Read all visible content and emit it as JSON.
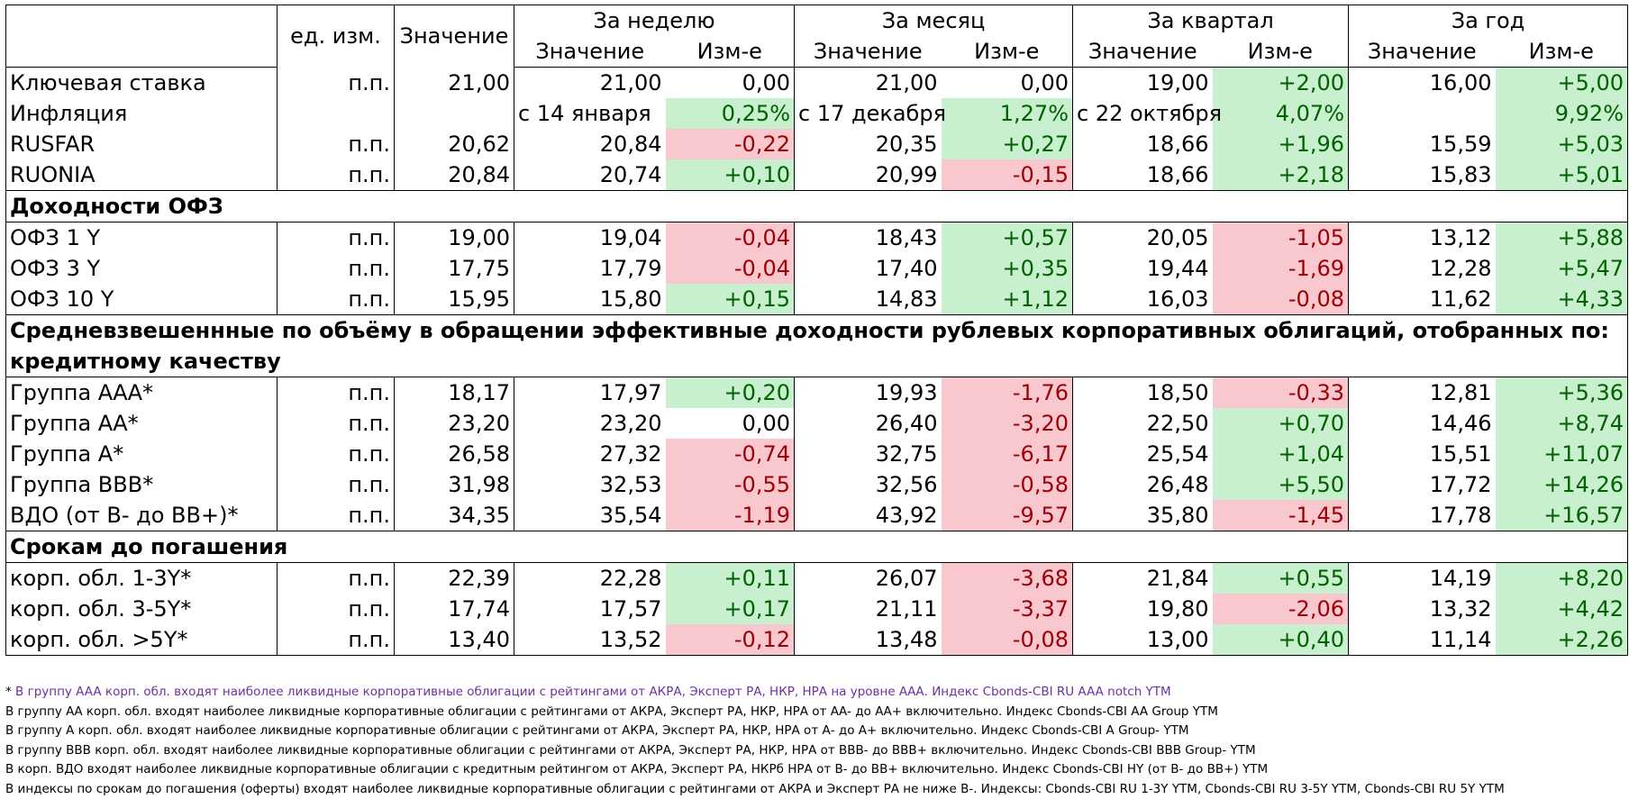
{
  "header": {
    "unit": "ед. изм.",
    "value": "Значение",
    "periods": [
      "За неделю",
      "За месяц",
      "За квартал",
      "За год"
    ],
    "sub_value": "Значение",
    "sub_change": "Изм-е"
  },
  "rows_top": [
    {
      "name": "Ключевая ставка",
      "unit": "п.п.",
      "value": "21,00",
      "cells": [
        {
          "v": "21,00",
          "c": "0,00",
          "t": ""
        },
        {
          "v": "21,00",
          "c": "0,00",
          "t": ""
        },
        {
          "v": "19,00",
          "c": "+2,00",
          "t": "pos"
        },
        {
          "v": "16,00",
          "c": "+5,00",
          "t": "pos"
        }
      ]
    },
    {
      "name": "Инфляция",
      "unit": "",
      "value": "",
      "cells": [
        {
          "v": "с 14 января",
          "c": "0,25%",
          "t": "pos"
        },
        {
          "v": "с 17 декабря",
          "c": "1,27%",
          "t": "pos"
        },
        {
          "v": "с 22 октября",
          "c": "4,07%",
          "t": "pos"
        },
        {
          "v": "",
          "c": "9,92%",
          "t": "pos"
        }
      ]
    },
    {
      "name": "RUSFAR",
      "unit": "п.п.",
      "value": "20,62",
      "cells": [
        {
          "v": "20,84",
          "c": "-0,22",
          "t": "neg"
        },
        {
          "v": "20,35",
          "c": "+0,27",
          "t": "pos"
        },
        {
          "v": "18,66",
          "c": "+1,96",
          "t": "pos"
        },
        {
          "v": "15,59",
          "c": "+5,03",
          "t": "pos"
        }
      ]
    },
    {
      "name": "RUONIA",
      "unit": "п.п.",
      "value": "20,84",
      "cells": [
        {
          "v": "20,74",
          "c": "+0,10",
          "t": "pos"
        },
        {
          "v": "20,99",
          "c": "-0,15",
          "t": "neg"
        },
        {
          "v": "18,66",
          "c": "+2,18",
          "t": "pos"
        },
        {
          "v": "15,83",
          "c": "+5,01",
          "t": "pos"
        }
      ]
    }
  ],
  "section_ofz": "Доходности ОФЗ",
  "rows_ofz": [
    {
      "name": "ОФЗ 1 Y",
      "unit": "п.п.",
      "value": "19,00",
      "cells": [
        {
          "v": "19,04",
          "c": "-0,04",
          "t": "neg"
        },
        {
          "v": "18,43",
          "c": "+0,57",
          "t": "pos"
        },
        {
          "v": "20,05",
          "c": "-1,05",
          "t": "neg"
        },
        {
          "v": "13,12",
          "c": "+5,88",
          "t": "pos"
        }
      ]
    },
    {
      "name": "ОФЗ 3 Y",
      "unit": "п.п.",
      "value": "17,75",
      "cells": [
        {
          "v": "17,79",
          "c": "-0,04",
          "t": "neg"
        },
        {
          "v": "17,40",
          "c": "+0,35",
          "t": "pos"
        },
        {
          "v": "19,44",
          "c": "-1,69",
          "t": "neg"
        },
        {
          "v": "12,28",
          "c": "+5,47",
          "t": "pos"
        }
      ]
    },
    {
      "name": "ОФЗ 10 Y",
      "unit": "п.п.",
      "value": "15,95",
      "cells": [
        {
          "v": "15,80",
          "c": "+0,15",
          "t": "pos"
        },
        {
          "v": "14,83",
          "c": "+1,12",
          "t": "pos"
        },
        {
          "v": "16,03",
          "c": "-0,08",
          "t": "neg"
        },
        {
          "v": "11,62",
          "c": "+4,33",
          "t": "pos"
        }
      ]
    }
  ],
  "section_corp_line1": "Средневзвешеннные по объёму в обращении эффективные доходности рублевых корпоративных облигаций, отобранных по:",
  "section_corp_line2": "кредитному качеству",
  "rows_credit": [
    {
      "name": "Группа ААА*",
      "unit": "п.п.",
      "value": "18,17",
      "cells": [
        {
          "v": "17,97",
          "c": "+0,20",
          "t": "pos"
        },
        {
          "v": "19,93",
          "c": "-1,76",
          "t": "neg"
        },
        {
          "v": "18,50",
          "c": "-0,33",
          "t": "neg"
        },
        {
          "v": "12,81",
          "c": "+5,36",
          "t": "pos"
        }
      ]
    },
    {
      "name": "Группа АА*",
      "unit": "п.п.",
      "value": "23,20",
      "cells": [
        {
          "v": "23,20",
          "c": "0,00",
          "t": ""
        },
        {
          "v": "26,40",
          "c": "-3,20",
          "t": "neg"
        },
        {
          "v": "22,50",
          "c": "+0,70",
          "t": "pos"
        },
        {
          "v": "14,46",
          "c": "+8,74",
          "t": "pos"
        }
      ]
    },
    {
      "name": "Группа А*",
      "unit": "п.п.",
      "value": "26,58",
      "cells": [
        {
          "v": "27,32",
          "c": "-0,74",
          "t": "neg"
        },
        {
          "v": "32,75",
          "c": "-6,17",
          "t": "neg"
        },
        {
          "v": "25,54",
          "c": "+1,04",
          "t": "pos"
        },
        {
          "v": "15,51",
          "c": "+11,07",
          "t": "pos"
        }
      ]
    },
    {
      "name": "Группа BBB*",
      "unit": "п.п.",
      "value": "31,98",
      "cells": [
        {
          "v": "32,53",
          "c": "-0,55",
          "t": "neg"
        },
        {
          "v": "32,56",
          "c": "-0,58",
          "t": "neg"
        },
        {
          "v": "26,48",
          "c": "+5,50",
          "t": "pos"
        },
        {
          "v": "17,72",
          "c": "+14,26",
          "t": "pos"
        }
      ]
    },
    {
      "name": "ВДО (от B- до BB+)*",
      "unit": "п.п.",
      "value": "34,35",
      "cells": [
        {
          "v": "35,54",
          "c": "-1,19",
          "t": "neg"
        },
        {
          "v": "43,92",
          "c": "-9,57",
          "t": "neg"
        },
        {
          "v": "35,80",
          "c": "-1,45",
          "t": "neg"
        },
        {
          "v": "17,78",
          "c": "+16,57",
          "t": "pos"
        }
      ]
    }
  ],
  "section_maturity": "Срокам до погашения",
  "rows_maturity": [
    {
      "name": "корп. обл. 1-3Y*",
      "unit": "п.п.",
      "value": "22,39",
      "cells": [
        {
          "v": "22,28",
          "c": "+0,11",
          "t": "pos"
        },
        {
          "v": "26,07",
          "c": "-3,68",
          "t": "neg"
        },
        {
          "v": "21,84",
          "c": "+0,55",
          "t": "pos"
        },
        {
          "v": "14,19",
          "c": "+8,20",
          "t": "pos"
        }
      ]
    },
    {
      "name": "корп. обл. 3-5Y*",
      "unit": "п.п.",
      "value": "17,74",
      "cells": [
        {
          "v": "17,57",
          "c": "+0,17",
          "t": "pos"
        },
        {
          "v": "21,11",
          "c": "-3,37",
          "t": "neg"
        },
        {
          "v": "19,80",
          "c": "-2,06",
          "t": "neg"
        },
        {
          "v": "13,32",
          "c": "+4,42",
          "t": "pos"
        }
      ]
    },
    {
      "name": "корп. обл. >5Y*",
      "unit": "п.п.",
      "value": "13,40",
      "cells": [
        {
          "v": "13,52",
          "c": "-0,12",
          "t": "neg"
        },
        {
          "v": "13,48",
          "c": "-0,08",
          "t": "neg"
        },
        {
          "v": "13,00",
          "c": "+0,40",
          "t": "pos"
        },
        {
          "v": "11,14",
          "c": "+2,26",
          "t": "pos"
        }
      ]
    }
  ],
  "notes": {
    "first_star": "* ",
    "first_rest": "В группу AAA корп. обл. входят наиболее ликвидные корпоративные облигации с рейтингами от АКРА, Эксперт РА, НКР, НРА на уровне ААА. Индекс Cbonds-CBI RU AAA notch YTM",
    "lines": [
      "В группу АА корп. обл. входят наиболее ликвидные корпоративные облигации с рейтингами от АКРА, Эксперт РА, НКР, НРА от АА- до АА+ включительно.  Индекс Cbonds-CBI AA Group YTM",
      "В группу А корп. обл. входят наиболее ликвидные корпоративные облигации с рейтингами от АКРА, Эксперт РА, НКР, НРА от А- до А+ включительно.  Индекс Cbonds-CBI A Group- YTM",
      "В группу BBB корп. обл. входят наиболее ликвидные корпоративные облигации с рейтингами от АКРА, Эксперт РА, НКР, НРА от BBB- до BBB+ включительно.  Индекс Cbonds-CBI BBB Group- YTM",
      "В корп. ВДО входят наиболее ликвидные корпоративные облигации с кредитным рейтингом от АКРА, Эксперт РА, НКРб НРА от B- до BB+ включительно. Индекс  Cbonds-CBI HY (от B- до BB+)  YTM",
      "В индексы по срокам до погашения (оферты) входят наиболее ликвидные корпоративные облигации с рейтингами от АКРА и Эксперт РА не ниже B-. Индексы:  Cbonds-CBI RU 1-3Y YTM, Cbonds-CBI RU 3-5Y YTM, Cbonds-CBI RU 5Y YTM"
    ]
  }
}
